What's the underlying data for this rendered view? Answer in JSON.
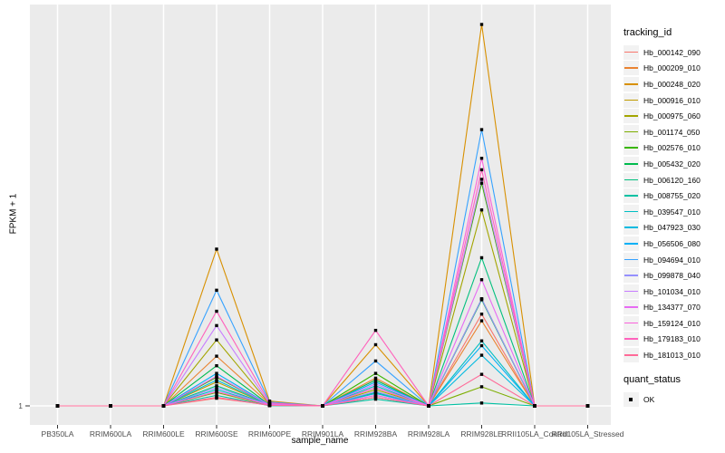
{
  "chart_data": {
    "type": "line",
    "title": "",
    "xlabel": "sample_name",
    "ylabel": "FPKM + 1",
    "categories": [
      "PB350LA",
      "RRIM600LA",
      "RRIM600LE",
      "RRIM600SE",
      "RRIM600PE",
      "RRIM901LA",
      "RRIM928BA",
      "RRIM928LA",
      "RRIM928LE",
      "RRII105LA_Control",
      "RRII105LA_Stressed"
    ],
    "y_axis": {
      "ticks": [
        {
          "label": "1",
          "value": 1
        }
      ],
      "max_value": 400,
      "min_value": 1
    },
    "layout": {
      "grid": "vertical-major",
      "legend_position": "right",
      "panel_bg": "#EBEBEB",
      "grid_color": "#FFFFFF",
      "tick_color": "#333333",
      "tick_label_color": "#4D4D4D"
    },
    "point_style": {
      "shape": "filled-square",
      "color": "#000000"
    },
    "series": [
      {
        "name": "Hb_000142_090",
        "color": "#F8766D",
        "values": [
          1,
          1,
          1,
          9,
          2,
          1,
          12,
          1,
          97,
          1,
          1
        ]
      },
      {
        "name": "Hb_000209_010",
        "color": "#EA8331",
        "values": [
          1,
          1,
          1,
          53,
          3,
          1,
          30,
          1,
          90,
          1,
          1
        ]
      },
      {
        "name": "Hb_000248_020",
        "color": "#D89000",
        "values": [
          1,
          1,
          1,
          165,
          6,
          1,
          65,
          1,
          400,
          1,
          1
        ]
      },
      {
        "name": "Hb_000916_010",
        "color": "#C09B00",
        "values": [
          1,
          1,
          1,
          26,
          2,
          1,
          20,
          1,
          113,
          1,
          1
        ]
      },
      {
        "name": "Hb_000975_060",
        "color": "#A3A500",
        "values": [
          1,
          1,
          1,
          70,
          3,
          1,
          18,
          1,
          206,
          1,
          1
        ]
      },
      {
        "name": "Hb_001174_050",
        "color": "#7CAE00",
        "values": [
          1,
          1,
          1,
          15,
          1.5,
          1,
          10,
          1,
          21,
          1,
          1
        ]
      },
      {
        "name": "Hb_002576_010",
        "color": "#39B600",
        "values": [
          1,
          1,
          1,
          31,
          2,
          1,
          35,
          1,
          234,
          1,
          1
        ]
      },
      {
        "name": "Hb_005432_020",
        "color": "#00BB4E",
        "values": [
          1,
          1,
          1,
          43,
          2,
          1,
          28,
          1,
          112,
          1,
          1
        ]
      },
      {
        "name": "Hb_006120_160",
        "color": "#00BF7D",
        "values": [
          1,
          1,
          1,
          22,
          2,
          1,
          15,
          1,
          156,
          1,
          1
        ]
      },
      {
        "name": "Hb_008755_020",
        "color": "#00C1A3",
        "values": [
          1,
          1,
          1,
          12,
          1.2,
          1,
          8,
          1,
          4,
          1,
          1
        ]
      },
      {
        "name": "Hb_039547_010",
        "color": "#00BFC4",
        "values": [
          1,
          1,
          1,
          18,
          1.5,
          1,
          22,
          1,
          69,
          1,
          1
        ]
      },
      {
        "name": "Hb_047923_030",
        "color": "#00BAE0",
        "values": [
          1,
          1,
          1,
          28,
          2,
          1,
          14,
          1,
          54,
          1,
          1
        ]
      },
      {
        "name": "Hb_056506_080",
        "color": "#00B0F6",
        "values": [
          1,
          1,
          1,
          35,
          2,
          1,
          26,
          1,
          64,
          1,
          1
        ]
      },
      {
        "name": "Hb_094694_010",
        "color": "#35A2FF",
        "values": [
          1,
          1,
          1,
          122,
          5,
          1,
          48,
          1,
          290,
          1,
          1
        ]
      },
      {
        "name": "Hb_099878_040",
        "color": "#9590FF",
        "values": [
          1,
          1,
          1,
          20,
          2,
          1,
          16,
          1,
          113,
          1,
          1
        ]
      },
      {
        "name": "Hb_101034_010",
        "color": "#C77CFF",
        "values": [
          1,
          1,
          1,
          85,
          3,
          1,
          24,
          1,
          238,
          1,
          1
        ]
      },
      {
        "name": "Hb_134377_070",
        "color": "#E76BF3",
        "values": [
          1,
          1,
          1,
          32,
          2,
          1,
          12,
          1,
          133,
          1,
          1
        ]
      },
      {
        "name": "Hb_159124_010",
        "color": "#FA62DB",
        "values": [
          1,
          1,
          1,
          16,
          2,
          1,
          20,
          1,
          260,
          1,
          1
        ]
      },
      {
        "name": "Hb_179183_010",
        "color": "#FF62BC",
        "values": [
          1,
          1,
          1,
          100,
          4,
          1,
          80,
          1,
          248,
          1,
          1
        ]
      },
      {
        "name": "Hb_181013_010",
        "color": "#FF6A98",
        "values": [
          1,
          1,
          1,
          10,
          1.5,
          1,
          10,
          1,
          34,
          1,
          1
        ]
      }
    ]
  },
  "legend": {
    "tracking_title": "tracking_id",
    "quant_title": "quant_status",
    "quant_items": [
      {
        "label": "OK"
      }
    ]
  }
}
